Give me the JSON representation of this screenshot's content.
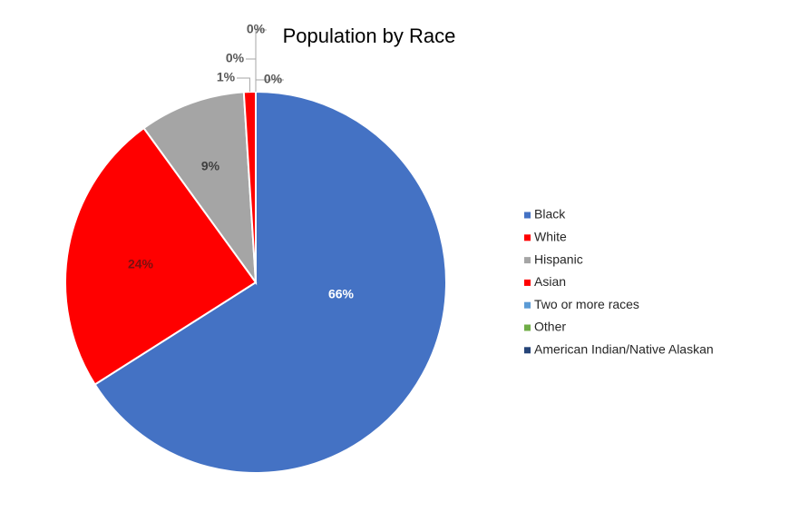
{
  "chart_data": {
    "type": "pie",
    "title": "Population by Race",
    "categories": [
      "Black",
      "White",
      "Hispanic",
      "Asian",
      "Two or more races",
      "Other",
      "American Indian/Native Alaskan"
    ],
    "values": [
      66,
      24,
      9,
      1,
      0,
      0,
      0
    ],
    "value_labels": [
      "66%",
      "24%",
      "9%",
      "1%",
      "0%",
      "0%",
      "0%"
    ],
    "colors": [
      "#4472c4",
      "#ff0000",
      "#a5a5a5",
      "#ff0000",
      "#5b9bd5",
      "#70ad47",
      "#264478"
    ],
    "legend": "right"
  }
}
